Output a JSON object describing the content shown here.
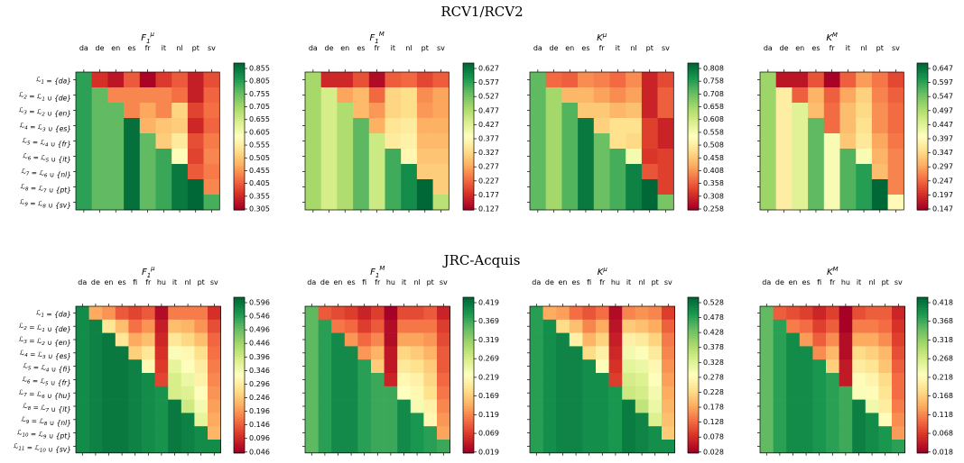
{
  "sections": [
    {
      "title": "RCV1/RCV2"
    },
    {
      "title": "JRC-Acquis"
    }
  ],
  "colormap": [
    "#a50026",
    "#d73027",
    "#f46d43",
    "#fdae61",
    "#fee08b",
    "#ffffbf",
    "#d9ef8b",
    "#a6d96a",
    "#66bd63",
    "#1a9850",
    "#006837"
  ],
  "chart_data": [
    {
      "type": "heatmap",
      "group": "RCV1/RCV2",
      "title": "F1μ",
      "columns": [
        "da",
        "de",
        "en",
        "es",
        "fr",
        "it",
        "nl",
        "pt",
        "sv"
      ],
      "rows": [
        "ℒ1 = {da}",
        "ℒ2 = ℒ1 ∪ {de}",
        "ℒ3 = ℒ2 ∪ {en}",
        "ℒ4 = ℒ3 ∪ {es}",
        "ℒ5 = ℒ4 ∪ {fr}",
        "ℒ6 = ℒ5 ∪ {it}",
        "ℒ7 = ℒ6 ∪ {nl}",
        "ℒ8 = ℒ7 ∪ {pt}",
        "ℒ9 = ℒ8 ∪ {sv}"
      ],
      "colorbar_ticks": [
        "0.855",
        "0.805",
        "0.755",
        "0.705",
        "0.655",
        "0.605",
        "0.555",
        "0.505",
        "0.455",
        "0.405",
        "0.355",
        "0.305"
      ],
      "vmin": 0.305,
      "vmax": 0.87,
      "values": [
        [
          0.8,
          0.36,
          0.33,
          0.4,
          0.31,
          0.37,
          0.4,
          0.34,
          0.39
        ],
        [
          0.8,
          0.76,
          0.44,
          0.44,
          0.44,
          0.44,
          0.42,
          0.34,
          0.41
        ],
        [
          0.8,
          0.76,
          0.76,
          0.44,
          0.47,
          0.44,
          0.52,
          0.38,
          0.42
        ],
        [
          0.8,
          0.76,
          0.76,
          0.86,
          0.48,
          0.5,
          0.51,
          0.35,
          0.41
        ],
        [
          0.8,
          0.76,
          0.76,
          0.86,
          0.76,
          0.51,
          0.55,
          0.39,
          0.43
        ],
        [
          0.8,
          0.76,
          0.76,
          0.86,
          0.76,
          0.79,
          0.58,
          0.38,
          0.44
        ],
        [
          0.8,
          0.76,
          0.76,
          0.86,
          0.76,
          0.79,
          0.85,
          0.4,
          0.43
        ],
        [
          0.8,
          0.76,
          0.76,
          0.86,
          0.76,
          0.79,
          0.85,
          0.88,
          0.44
        ],
        [
          0.8,
          0.76,
          0.76,
          0.86,
          0.76,
          0.79,
          0.85,
          0.88,
          0.78
        ]
      ]
    },
    {
      "type": "heatmap",
      "group": "RCV1/RCV2",
      "title": "F1M",
      "columns": [
        "da",
        "de",
        "en",
        "es",
        "fr",
        "it",
        "nl",
        "pt",
        "sv"
      ],
      "colorbar_ticks": [
        "0.627",
        "0.577",
        "0.527",
        "0.477",
        "0.427",
        "0.377",
        "0.327",
        "0.277",
        "0.227",
        "0.177",
        "0.127"
      ],
      "vmin": 0.127,
      "vmax": 0.66,
      "values": [
        [
          0.5,
          0.17,
          0.17,
          0.21,
          0.14,
          0.22,
          0.23,
          0.2,
          0.22
        ],
        [
          0.5,
          0.45,
          0.28,
          0.3,
          0.23,
          0.33,
          0.34,
          0.26,
          0.28
        ],
        [
          0.5,
          0.45,
          0.49,
          0.3,
          0.27,
          0.33,
          0.34,
          0.27,
          0.28
        ],
        [
          0.5,
          0.45,
          0.49,
          0.56,
          0.29,
          0.35,
          0.36,
          0.29,
          0.29
        ],
        [
          0.5,
          0.45,
          0.49,
          0.56,
          0.46,
          0.36,
          0.37,
          0.3,
          0.3
        ],
        [
          0.5,
          0.45,
          0.49,
          0.56,
          0.46,
          0.58,
          0.38,
          0.31,
          0.31
        ],
        [
          0.5,
          0.45,
          0.49,
          0.56,
          0.46,
          0.58,
          0.62,
          0.32,
          0.32
        ],
        [
          0.5,
          0.45,
          0.49,
          0.56,
          0.46,
          0.58,
          0.62,
          0.66,
          0.32
        ],
        [
          0.5,
          0.45,
          0.49,
          0.56,
          0.46,
          0.58,
          0.62,
          0.66,
          0.48
        ]
      ]
    },
    {
      "type": "heatmap",
      "group": "RCV1/RCV2",
      "title": "Kμ",
      "columns": [
        "da",
        "de",
        "en",
        "es",
        "fr",
        "it",
        "nl",
        "pt",
        "sv"
      ],
      "colorbar_ticks": [
        "0.808",
        "0.758",
        "0.708",
        "0.658",
        "0.608",
        "0.558",
        "0.508",
        "0.458",
        "0.408",
        "0.358",
        "0.308",
        "0.258"
      ],
      "vmin": 0.258,
      "vmax": 0.83,
      "values": [
        [
          0.72,
          0.37,
          0.36,
          0.4,
          0.39,
          0.37,
          0.4,
          0.3,
          0.34
        ],
        [
          0.72,
          0.66,
          0.44,
          0.44,
          0.42,
          0.4,
          0.42,
          0.3,
          0.36
        ],
        [
          0.72,
          0.66,
          0.73,
          0.46,
          0.46,
          0.44,
          0.45,
          0.3,
          0.36
        ],
        [
          0.72,
          0.66,
          0.73,
          0.81,
          0.47,
          0.49,
          0.49,
          0.33,
          0.3
        ],
        [
          0.72,
          0.66,
          0.73,
          0.81,
          0.71,
          0.49,
          0.48,
          0.33,
          0.3
        ],
        [
          0.72,
          0.66,
          0.73,
          0.81,
          0.71,
          0.74,
          0.56,
          0.32,
          0.33
        ],
        [
          0.72,
          0.66,
          0.73,
          0.81,
          0.71,
          0.74,
          0.8,
          0.35,
          0.33
        ],
        [
          0.72,
          0.66,
          0.73,
          0.81,
          0.71,
          0.74,
          0.8,
          0.83,
          0.33
        ],
        [
          0.72,
          0.66,
          0.73,
          0.81,
          0.71,
          0.74,
          0.8,
          0.83,
          0.7
        ]
      ]
    },
    {
      "type": "heatmap",
      "group": "RCV1/RCV2",
      "title": "KM",
      "columns": [
        "da",
        "de",
        "en",
        "es",
        "fr",
        "it",
        "nl",
        "pt",
        "sv"
      ],
      "colorbar_ticks": [
        "0.647",
        "0.597",
        "0.547",
        "0.497",
        "0.447",
        "0.397",
        "0.347",
        "0.297",
        "0.247",
        "0.197",
        "0.147"
      ],
      "vmin": 0.147,
      "vmax": 0.67,
      "values": [
        [
          0.52,
          0.17,
          0.17,
          0.23,
          0.15,
          0.24,
          0.29,
          0.26,
          0.22
        ],
        [
          0.52,
          0.38,
          0.24,
          0.31,
          0.24,
          0.3,
          0.34,
          0.27,
          0.24
        ],
        [
          0.52,
          0.38,
          0.45,
          0.32,
          0.25,
          0.32,
          0.35,
          0.28,
          0.25
        ],
        [
          0.52,
          0.38,
          0.45,
          0.57,
          0.25,
          0.32,
          0.36,
          0.28,
          0.25
        ],
        [
          0.52,
          0.38,
          0.45,
          0.57,
          0.42,
          0.33,
          0.37,
          0.3,
          0.26
        ],
        [
          0.52,
          0.38,
          0.45,
          0.57,
          0.42,
          0.58,
          0.42,
          0.31,
          0.27
        ],
        [
          0.52,
          0.38,
          0.45,
          0.57,
          0.42,
          0.58,
          0.61,
          0.32,
          0.27
        ],
        [
          0.52,
          0.38,
          0.45,
          0.57,
          0.42,
          0.58,
          0.61,
          0.67,
          0.27
        ],
        [
          0.52,
          0.38,
          0.45,
          0.57,
          0.42,
          0.58,
          0.61,
          0.67,
          0.4
        ]
      ]
    },
    {
      "type": "heatmap",
      "group": "JRC-Acquis",
      "title": "F1μ",
      "columns": [
        "da",
        "de",
        "en",
        "es",
        "fi",
        "fr",
        "hu",
        "it",
        "nl",
        "pt",
        "sv"
      ],
      "rows": [
        "ℒ1 = {da}",
        "ℒ2 = ℒ1 ∪ {de}",
        "ℒ3 = ℒ2 ∪ {en}",
        "ℒ4 = ℒ3 ∪ {es}",
        "ℒ5 = ℒ4 ∪ {fi}",
        "ℒ6 = ℒ5 ∪ {fr}",
        "ℒ7 = ℒ6 ∪ {hu}",
        "ℒ8 = ℒ7 ∪ {it}",
        "ℒ9 = ℒ8 ∪ {nl}",
        "ℒ10 = ℒ9 ∪ {pt}",
        "ℒ11 = ℒ10 ∪ {sv}"
      ],
      "colorbar_ticks": [
        "0.596",
        "0.546",
        "0.496",
        "0.446",
        "0.396",
        "0.346",
        "0.296",
        "0.246",
        "0.196",
        "0.146",
        "0.096",
        "0.046"
      ],
      "vmin": 0.046,
      "vmax": 0.6,
      "values": [
        [
          0.56,
          0.21,
          0.19,
          0.14,
          0.12,
          0.14,
          0.06,
          0.17,
          0.17,
          0.17,
          0.1
        ],
        [
          0.56,
          0.57,
          0.28,
          0.23,
          0.16,
          0.19,
          0.08,
          0.23,
          0.22,
          0.19,
          0.13
        ],
        [
          0.56,
          0.57,
          0.58,
          0.28,
          0.21,
          0.23,
          0.09,
          0.28,
          0.26,
          0.23,
          0.15
        ],
        [
          0.56,
          0.57,
          0.58,
          0.58,
          0.25,
          0.28,
          0.1,
          0.33,
          0.31,
          0.27,
          0.16
        ],
        [
          0.56,
          0.57,
          0.58,
          0.58,
          0.57,
          0.31,
          0.11,
          0.36,
          0.32,
          0.29,
          0.17
        ],
        [
          0.56,
          0.57,
          0.58,
          0.58,
          0.57,
          0.56,
          0.12,
          0.38,
          0.35,
          0.3,
          0.18
        ],
        [
          0.56,
          0.57,
          0.58,
          0.58,
          0.57,
          0.56,
          0.55,
          0.38,
          0.37,
          0.32,
          0.19
        ],
        [
          0.56,
          0.57,
          0.58,
          0.58,
          0.57,
          0.56,
          0.55,
          0.58,
          0.39,
          0.34,
          0.2
        ],
        [
          0.56,
          0.57,
          0.58,
          0.58,
          0.57,
          0.56,
          0.55,
          0.58,
          0.57,
          0.36,
          0.21
        ],
        [
          0.56,
          0.57,
          0.58,
          0.58,
          0.57,
          0.56,
          0.55,
          0.58,
          0.57,
          0.56,
          0.22
        ],
        [
          0.56,
          0.57,
          0.58,
          0.58,
          0.57,
          0.56,
          0.55,
          0.58,
          0.57,
          0.56,
          0.56
        ]
      ]
    },
    {
      "type": "heatmap",
      "group": "JRC-Acquis",
      "title": "F1M",
      "columns": [
        "da",
        "de",
        "en",
        "es",
        "fi",
        "fr",
        "hu",
        "it",
        "nl",
        "pt",
        "sv"
      ],
      "colorbar_ticks": [
        "0.419",
        "0.369",
        "0.319",
        "0.269",
        "0.219",
        "0.169",
        "0.119",
        "0.069",
        "0.019"
      ],
      "vmin": 0.019,
      "vmax": 0.44,
      "values": [
        [
          0.36,
          0.09,
          0.08,
          0.07,
          0.05,
          0.07,
          0.02,
          0.08,
          0.08,
          0.09,
          0.05
        ],
        [
          0.36,
          0.39,
          0.11,
          0.1,
          0.07,
          0.09,
          0.03,
          0.11,
          0.11,
          0.11,
          0.07
        ],
        [
          0.36,
          0.39,
          0.41,
          0.13,
          0.1,
          0.12,
          0.03,
          0.14,
          0.14,
          0.13,
          0.08
        ],
        [
          0.36,
          0.39,
          0.41,
          0.41,
          0.13,
          0.15,
          0.04,
          0.18,
          0.17,
          0.15,
          0.09
        ],
        [
          0.36,
          0.39,
          0.41,
          0.41,
          0.39,
          0.17,
          0.04,
          0.2,
          0.19,
          0.17,
          0.09
        ],
        [
          0.36,
          0.39,
          0.41,
          0.41,
          0.39,
          0.38,
          0.05,
          0.22,
          0.21,
          0.18,
          0.1
        ],
        [
          0.36,
          0.39,
          0.41,
          0.41,
          0.39,
          0.38,
          0.38,
          0.23,
          0.22,
          0.19,
          0.11
        ],
        [
          0.36,
          0.39,
          0.41,
          0.41,
          0.39,
          0.38,
          0.38,
          0.41,
          0.24,
          0.21,
          0.12
        ],
        [
          0.36,
          0.39,
          0.41,
          0.41,
          0.39,
          0.38,
          0.38,
          0.41,
          0.4,
          0.22,
          0.13
        ],
        [
          0.36,
          0.39,
          0.41,
          0.41,
          0.39,
          0.38,
          0.38,
          0.41,
          0.4,
          0.39,
          0.14
        ],
        [
          0.36,
          0.39,
          0.41,
          0.41,
          0.39,
          0.38,
          0.38,
          0.41,
          0.4,
          0.39,
          0.38
        ]
      ]
    },
    {
      "type": "heatmap",
      "group": "JRC-Acquis",
      "title": "Kμ",
      "columns": [
        "da",
        "de",
        "en",
        "es",
        "fi",
        "fr",
        "hu",
        "it",
        "nl",
        "pt",
        "sv"
      ],
      "colorbar_ticks": [
        "0.528",
        "0.478",
        "0.428",
        "0.378",
        "0.328",
        "0.278",
        "0.228",
        "0.178",
        "0.128",
        "0.078",
        "0.028"
      ],
      "vmin": 0.028,
      "vmax": 0.54,
      "values": [
        [
          0.48,
          0.18,
          0.17,
          0.13,
          0.11,
          0.13,
          0.04,
          0.15,
          0.16,
          0.15,
          0.09
        ],
        [
          0.48,
          0.5,
          0.23,
          0.2,
          0.15,
          0.18,
          0.05,
          0.21,
          0.2,
          0.18,
          0.12
        ],
        [
          0.48,
          0.5,
          0.51,
          0.26,
          0.19,
          0.22,
          0.06,
          0.26,
          0.25,
          0.22,
          0.14
        ],
        [
          0.48,
          0.5,
          0.51,
          0.51,
          0.23,
          0.26,
          0.07,
          0.3,
          0.29,
          0.25,
          0.15
        ],
        [
          0.48,
          0.5,
          0.51,
          0.51,
          0.5,
          0.29,
          0.08,
          0.32,
          0.31,
          0.27,
          0.16
        ],
        [
          0.48,
          0.5,
          0.51,
          0.51,
          0.5,
          0.5,
          0.09,
          0.34,
          0.33,
          0.28,
          0.17
        ],
        [
          0.48,
          0.5,
          0.51,
          0.51,
          0.5,
          0.5,
          0.49,
          0.35,
          0.34,
          0.3,
          0.18
        ],
        [
          0.48,
          0.5,
          0.51,
          0.51,
          0.5,
          0.5,
          0.49,
          0.52,
          0.36,
          0.31,
          0.19
        ],
        [
          0.48,
          0.5,
          0.51,
          0.51,
          0.5,
          0.5,
          0.49,
          0.52,
          0.51,
          0.33,
          0.2
        ],
        [
          0.48,
          0.5,
          0.51,
          0.51,
          0.5,
          0.5,
          0.49,
          0.52,
          0.51,
          0.5,
          0.21
        ],
        [
          0.48,
          0.5,
          0.51,
          0.51,
          0.5,
          0.5,
          0.49,
          0.52,
          0.51,
          0.5,
          0.5
        ]
      ]
    },
    {
      "type": "heatmap",
      "group": "JRC-Acquis",
      "title": "KM",
      "columns": [
        "da",
        "de",
        "en",
        "es",
        "fi",
        "fr",
        "hu",
        "it",
        "nl",
        "pt",
        "sv"
      ],
      "colorbar_ticks": [
        "0.418",
        "0.368",
        "0.318",
        "0.268",
        "0.218",
        "0.168",
        "0.118",
        "0.068",
        "0.018"
      ],
      "vmin": 0.018,
      "vmax": 0.43,
      "values": [
        [
          0.35,
          0.09,
          0.08,
          0.07,
          0.05,
          0.07,
          0.02,
          0.08,
          0.09,
          0.09,
          0.05
        ],
        [
          0.35,
          0.38,
          0.11,
          0.1,
          0.07,
          0.09,
          0.02,
          0.11,
          0.11,
          0.1,
          0.06
        ],
        [
          0.35,
          0.38,
          0.4,
          0.13,
          0.09,
          0.12,
          0.03,
          0.14,
          0.14,
          0.12,
          0.07
        ],
        [
          0.35,
          0.38,
          0.4,
          0.4,
          0.12,
          0.15,
          0.03,
          0.18,
          0.17,
          0.15,
          0.08
        ],
        [
          0.35,
          0.38,
          0.4,
          0.4,
          0.39,
          0.17,
          0.04,
          0.2,
          0.19,
          0.16,
          0.09
        ],
        [
          0.35,
          0.38,
          0.4,
          0.4,
          0.39,
          0.38,
          0.04,
          0.22,
          0.21,
          0.18,
          0.1
        ],
        [
          0.35,
          0.38,
          0.4,
          0.4,
          0.39,
          0.38,
          0.37,
          0.23,
          0.22,
          0.19,
          0.1
        ],
        [
          0.35,
          0.38,
          0.4,
          0.4,
          0.39,
          0.38,
          0.37,
          0.41,
          0.24,
          0.2,
          0.11
        ],
        [
          0.35,
          0.38,
          0.4,
          0.4,
          0.39,
          0.38,
          0.37,
          0.41,
          0.4,
          0.22,
          0.12
        ],
        [
          0.35,
          0.38,
          0.4,
          0.4,
          0.39,
          0.38,
          0.37,
          0.41,
          0.4,
          0.39,
          0.13
        ],
        [
          0.35,
          0.38,
          0.4,
          0.4,
          0.39,
          0.38,
          0.37,
          0.41,
          0.4,
          0.39,
          0.38
        ]
      ]
    }
  ]
}
